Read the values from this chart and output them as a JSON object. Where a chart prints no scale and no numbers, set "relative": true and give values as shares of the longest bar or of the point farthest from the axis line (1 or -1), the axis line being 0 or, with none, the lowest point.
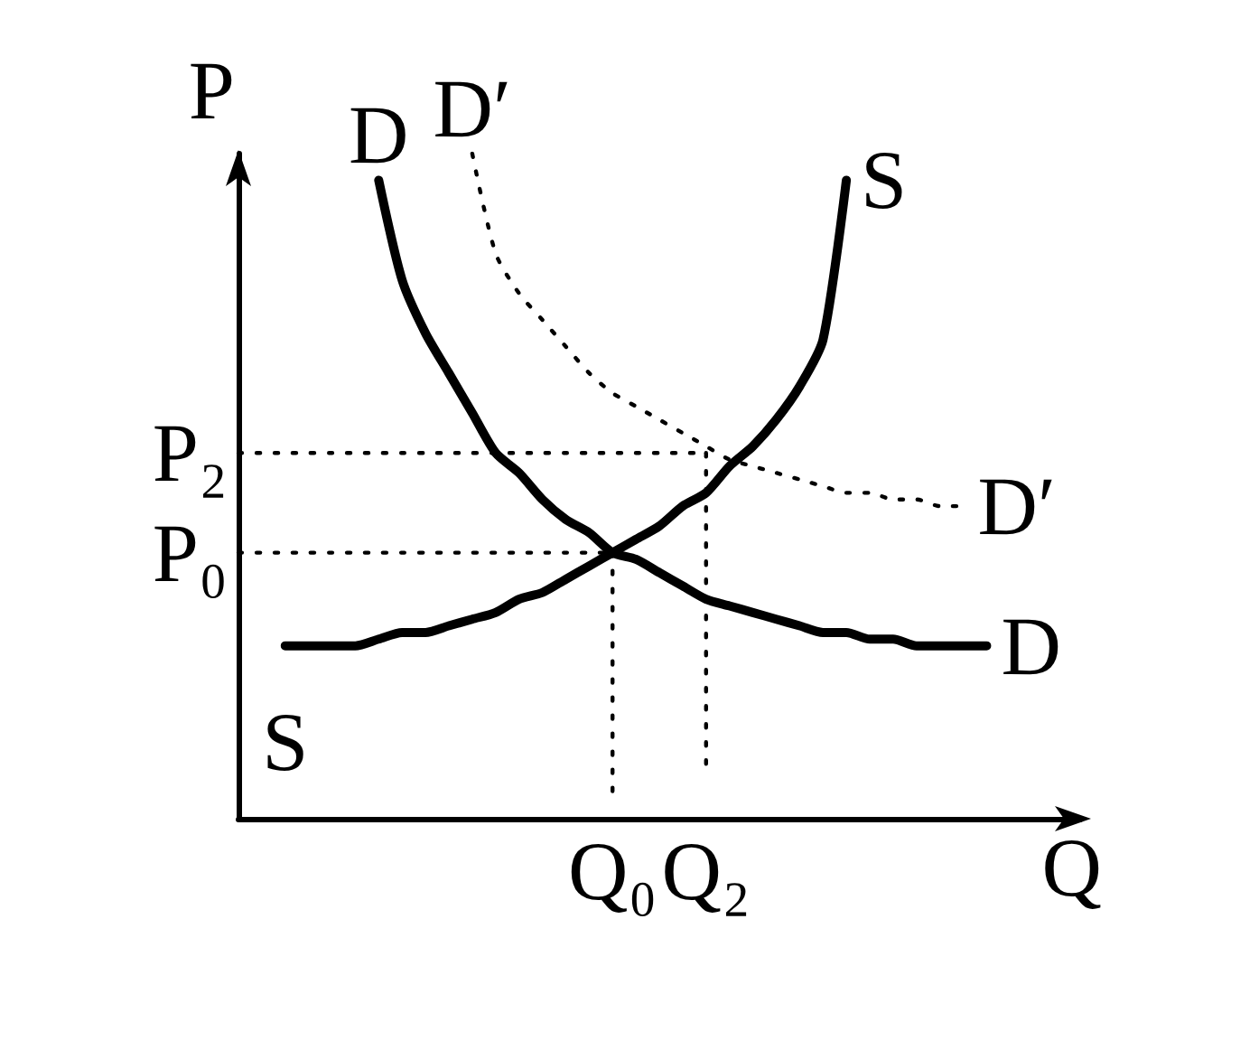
{
  "chart_data": {
    "type": "line",
    "relative": true,
    "xlabel": "Q",
    "ylabel": "P",
    "categories": [
      null,
      null,
      null,
      null,
      null,
      null,
      null,
      null,
      null,
      null,
      null,
      null,
      null,
      null,
      null,
      null,
      "Q₀",
      null,
      null,
      null,
      "Q₂",
      null,
      null,
      null,
      null,
      null,
      null,
      null,
      null,
      null,
      null,
      null,
      null,
      null,
      null,
      null,
      null
    ],
    "marker": "none",
    "line_style": "solid",
    "series": [
      {
        "name": "D",
        "color": "#000000",
        "values": [
          null,
          null,
          null,
          null,
          null,
          null,
          0.96,
          0.81,
          0.73,
          0.67,
          0.61,
          0.55,
          0.52,
          0.48,
          0.45,
          0.43,
          0.4,
          0.39,
          0.37,
          0.35,
          0.33,
          0.32,
          0.31,
          0.3,
          0.29,
          0.28,
          0.28,
          0.27,
          0.27,
          0.26,
          0.26,
          0.26,
          0.26,
          null,
          null,
          null,
          null
        ]
      },
      {
        "name": "D′",
        "color": "#000000",
        "line_style": "dotted",
        "values": [
          null,
          null,
          null,
          null,
          null,
          null,
          null,
          null,
          null,
          null,
          1.0,
          0.85,
          0.79,
          0.75,
          0.71,
          0.67,
          0.64,
          0.62,
          0.6,
          0.58,
          0.56,
          0.54,
          0.53,
          0.52,
          0.51,
          0.5,
          0.49,
          0.49,
          0.48,
          0.48,
          0.47,
          0.47,
          null,
          null,
          null,
          null,
          null
        ]
      },
      {
        "name": "S",
        "color": "#000000",
        "values": [
          null,
          null,
          0.26,
          0.26,
          0.26,
          0.26,
          0.27,
          0.28,
          0.28,
          0.29,
          0.3,
          0.31,
          0.33,
          0.34,
          0.36,
          0.38,
          0.4,
          0.42,
          0.44,
          0.47,
          0.49,
          0.53,
          0.56,
          0.6,
          0.65,
          0.72,
          0.96,
          null,
          null,
          null,
          null,
          null,
          null,
          null,
          null,
          null,
          null
        ]
      },
      {
        "name": "P₂",
        "color": "#000000",
        "line_style": "dotted",
        "values": [
          0.55,
          0.55,
          0.55,
          0.55,
          0.55,
          0.55,
          0.55,
          0.55,
          0.55,
          0.55,
          0.55,
          0.55,
          0.55,
          0.55,
          0.55,
          0.55,
          0.55,
          0.55,
          0.55,
          0.55,
          0.55,
          null,
          null,
          null,
          null,
          null,
          null,
          null,
          null,
          null,
          null,
          null,
          null,
          null,
          null,
          null,
          null
        ]
      },
      {
        "name": "P₀",
        "color": "#000000",
        "line_style": "dotted",
        "values": [
          0.4,
          0.4,
          0.4,
          0.4,
          0.4,
          0.4,
          0.4,
          0.4,
          0.4,
          0.4,
          0.4,
          0.4,
          0.4,
          0.4,
          0.4,
          0.4,
          0.4,
          null,
          null,
          null,
          null,
          null,
          null,
          null,
          null,
          null,
          null,
          null,
          null,
          null,
          null,
          null,
          null,
          null,
          null,
          null,
          null
        ]
      },
      {
        "color": "#000000",
        "line_style": "dotted",
        "x": [
          "Q₀",
          "Q₀"
        ],
        "values": [
          0.4,
          0.03
        ]
      },
      {
        "color": "#000000",
        "line_style": "dotted",
        "x": [
          "Q₂",
          "Q₂"
        ],
        "values": [
          0.55,
          0.07
        ]
      }
    ]
  }
}
